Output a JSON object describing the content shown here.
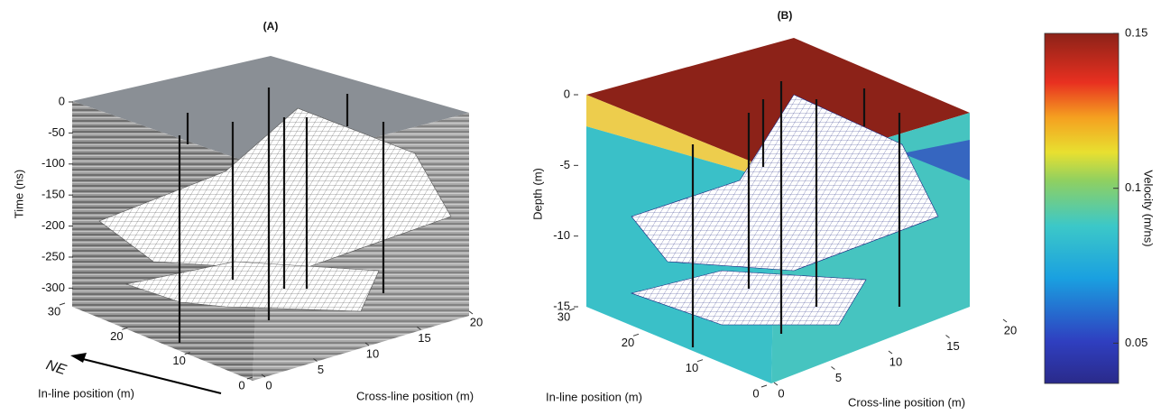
{
  "chart_data": [
    {
      "type": "surface3d",
      "title": "(A)",
      "zlabel": "Time (ns)",
      "zlim": [
        -330,
        0
      ],
      "zticks": [
        0,
        -50,
        -100,
        -150,
        -200,
        -250,
        -300
      ],
      "xlabel": "In-line position (m)",
      "xlim": [
        0,
        30
      ],
      "xticks": [
        0,
        10,
        20,
        30
      ],
      "ylabel": "Cross-line position (m)",
      "ylim": [
        0,
        20
      ],
      "yticks": [
        0,
        5,
        10,
        15,
        20
      ],
      "annotation": "NE"
    },
    {
      "type": "surface3d",
      "title": "(B)",
      "zlabel": "Depth (m)",
      "zlim": [
        -15,
        0
      ],
      "zticks": [
        0,
        -5,
        -10,
        -15
      ],
      "xlabel": "In-line position (m)",
      "xlim": [
        0,
        30
      ],
      "xticks": [
        0,
        10,
        20,
        30
      ],
      "ylabel": "Cross-line position (m)",
      "ylim": [
        0,
        20
      ],
      "yticks": [
        0,
        5,
        10,
        15,
        20
      ]
    },
    {
      "type": "colorbar",
      "label": "Velocity (m/ns)",
      "lim": [
        0.037,
        0.15
      ],
      "ticks": [
        0.05,
        0.1,
        0.15
      ]
    }
  ]
}
